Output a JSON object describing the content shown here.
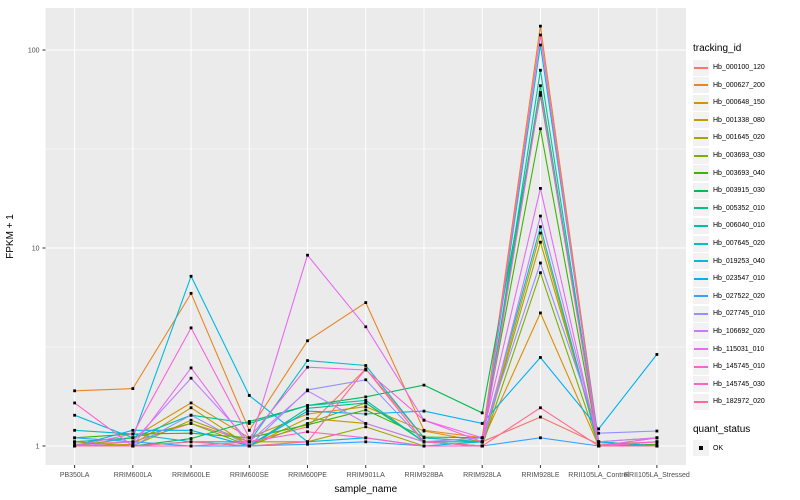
{
  "figure": {
    "background": "#FFFFFF",
    "panel_background": "#EBEBEB",
    "gridline_color": "#FFFFFF",
    "tick_color": "#333333",
    "tick_label_color": "#4D4D4D",
    "point_color": "#000000"
  },
  "chart_data": {
    "type": "line",
    "title": "",
    "xlabel": "sample_name",
    "ylabel": "FPKM + 1",
    "y_scale": "log10",
    "y_ticks": [
      1,
      10,
      100
    ],
    "y_minor_ticks": [
      3.1623,
      31.623
    ],
    "ylim": [
      0.8,
      163
    ],
    "grid": true,
    "legend_title": "tracking_id",
    "legend_position": "right",
    "quant_legend": {
      "title": "quant_status",
      "items": [
        "OK"
      ]
    },
    "categories": [
      "PB350LA",
      "RRIM600LA",
      "RRIM600LE",
      "RRIM600SE",
      "RRIM600PE",
      "RRIM901LA",
      "RRIM928BA",
      "RRIM928LA",
      "RRIM928LE",
      "RRII105LA_Control",
      "RRII105LA_Stressed"
    ],
    "series": [
      {
        "name": "Hb_000100_120",
        "color": "#F8766D",
        "values": [
          1.02,
          1.05,
          1.3,
          1.05,
          1.25,
          2.45,
          1.1,
          1.05,
          1.4,
          1.02,
          1.05
        ]
      },
      {
        "name": "Hb_000627_200",
        "color": "#E88526",
        "values": [
          1.9,
          1.95,
          5.9,
          1.2,
          3.4,
          5.3,
          1.2,
          1.1,
          132,
          1.05,
          1.0
        ]
      },
      {
        "name": "Hb_000648_150",
        "color": "#D89000",
        "values": [
          1.05,
          1.1,
          1.65,
          1.1,
          1.45,
          1.58,
          1.19,
          1.05,
          4.7,
          1.0,
          1.0
        ]
      },
      {
        "name": "Hb_001338_080",
        "color": "#C49A00",
        "values": [
          1.0,
          1.02,
          1.56,
          1.0,
          1.38,
          1.3,
          1.05,
          1.0,
          11.9,
          1.0,
          1.05
        ]
      },
      {
        "name": "Hb_001645_020",
        "color": "#A3A500",
        "values": [
          1.05,
          1.0,
          1.35,
          1.05,
          1.05,
          1.25,
          1.0,
          1.0,
          10.7,
          1.05,
          1.1
        ]
      },
      {
        "name": "Hb_003693_030",
        "color": "#7CAE00",
        "values": [
          1.0,
          1.1,
          1.3,
          1.0,
          1.3,
          1.65,
          1.05,
          1.0,
          7.5,
          1.0,
          1.0
        ]
      },
      {
        "name": "Hb_003693_040",
        "color": "#39B600",
        "values": [
          1.1,
          1.15,
          1.16,
          1.1,
          1.28,
          1.52,
          1.11,
          1.1,
          40.0,
          1.0,
          1.02
        ]
      },
      {
        "name": "Hb_003915_030",
        "color": "#00BB4E",
        "values": [
          1.0,
          1.0,
          1.09,
          1.33,
          1.6,
          1.77,
          2.03,
          1.47,
          59.0,
          1.05,
          1.0
        ]
      },
      {
        "name": "Hb_005352_010",
        "color": "#00C087",
        "values": [
          1.0,
          1.0,
          1.05,
          1.0,
          1.55,
          1.65,
          1.05,
          1.05,
          66.0,
          1.0,
          1.0
        ]
      },
      {
        "name": "Hb_006040_010",
        "color": "#00C1A3",
        "values": [
          1.05,
          1.1,
          1.43,
          1.3,
          1.6,
          1.7,
          1.05,
          1.0,
          79.0,
          1.0,
          1.1
        ]
      },
      {
        "name": "Hb_007645_020",
        "color": "#00BFC4",
        "values": [
          1.2,
          1.15,
          1.05,
          1.05,
          2.7,
          2.55,
          1.1,
          1.05,
          12.8,
          1.0,
          1.0
        ]
      },
      {
        "name": "Hb_019253_040",
        "color": "#00BAE0",
        "values": [
          1.43,
          1.1,
          7.2,
          1.8,
          1.05,
          1.1,
          1.0,
          1.05,
          106,
          1.05,
          1.0
        ]
      },
      {
        "name": "Hb_023547_010",
        "color": "#00B0F6",
        "values": [
          1.0,
          1.2,
          1.2,
          1.0,
          1.5,
          1.45,
          1.5,
          1.3,
          2.8,
          1.22,
          2.9
        ]
      },
      {
        "name": "Hb_027522_020",
        "color": "#35A2FF",
        "values": [
          1.1,
          1.05,
          1.0,
          1.0,
          1.02,
          1.05,
          1.0,
          1.0,
          1.1,
          1.0,
          1.05
        ]
      },
      {
        "name": "Hb_027745_010",
        "color": "#9590FF",
        "values": [
          1.0,
          1.0,
          1.43,
          1.0,
          1.92,
          2.16,
          1.05,
          1.1,
          8.4,
          1.16,
          1.19
        ]
      },
      {
        "name": "Hb_106692_020",
        "color": "#C77CFF",
        "values": [
          1.0,
          1.05,
          2.2,
          1.05,
          1.9,
          1.3,
          1.05,
          1.0,
          14.5,
          1.05,
          1.1
        ]
      },
      {
        "name": "Hb_115031_010",
        "color": "#E76BF3",
        "values": [
          1.0,
          1.0,
          2.48,
          1.0,
          9.2,
          4.0,
          1.35,
          1.1,
          20.0,
          1.0,
          1.05
        ]
      },
      {
        "name": "Hb_145745_010",
        "color": "#FA62DB",
        "values": [
          1.0,
          1.15,
          3.95,
          1.1,
          2.5,
          2.42,
          1.35,
          1.05,
          119,
          1.0,
          1.1
        ]
      },
      {
        "name": "Hb_145745_030",
        "color": "#FF61CC",
        "values": [
          1.65,
          1.0,
          1.0,
          1.05,
          1.18,
          1.1,
          1.0,
          1.0,
          61.0,
          1.0,
          1.05
        ]
      },
      {
        "name": "Hb_182972_020",
        "color": "#FF6A98",
        "values": [
          1.0,
          1.0,
          1.05,
          1.0,
          1.05,
          2.45,
          1.05,
          1.0,
          1.56,
          1.0,
          1.0
        ]
      }
    ]
  }
}
